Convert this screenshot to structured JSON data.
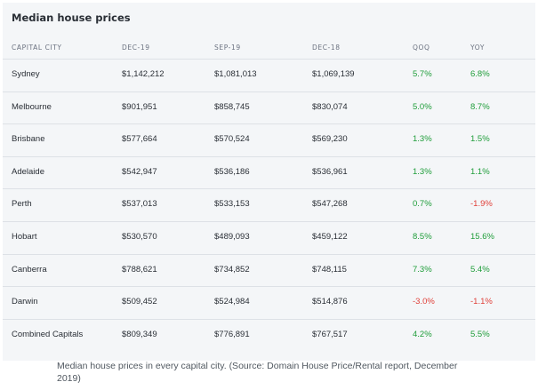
{
  "table": {
    "title": "Median house prices",
    "headers": [
      "CAPITAL CITY",
      "DEC-19",
      "SEP-19",
      "DEC-18",
      "QOQ",
      "YOY"
    ],
    "rows": [
      [
        "Sydney",
        "$1,142,212",
        "$1,081,013",
        "$1,069,139",
        "5.7%",
        "6.8%"
      ],
      [
        "Melbourne",
        "$901,951",
        "$858,745",
        "$830,074",
        "5.0%",
        "8.7%"
      ],
      [
        "Brisbane",
        "$577,664",
        "$570,524",
        "$569,230",
        "1.3%",
        "1.5%"
      ],
      [
        "Adelaide",
        "$542,947",
        "$536,186",
        "$536,961",
        "1.3%",
        "1.1%"
      ],
      [
        "Perth",
        "$537,013",
        "$533,153",
        "$547,268",
        "0.7%",
        "-1.9%"
      ],
      [
        "Hobart",
        "$530,570",
        "$489,093",
        "$459,122",
        "8.5%",
        "15.6%"
      ],
      [
        "Canberra",
        "$788,621",
        "$734,852",
        "$748,115",
        "7.3%",
        "5.4%"
      ],
      [
        "Darwin",
        "$509,452",
        "$524,984",
        "$514,876",
        "-3.0%",
        "-1.1%"
      ],
      [
        "Combined Capitals",
        "$809,349",
        "$776,891",
        "$767,517",
        "4.2%",
        "5.5%"
      ]
    ]
  },
  "colors": {
    "positive": "#1f9d3a",
    "negative": "#e0413a"
  },
  "caption": "Median house prices in every capital city. (Source: Domain House Price/Rental report, December 2019)"
}
